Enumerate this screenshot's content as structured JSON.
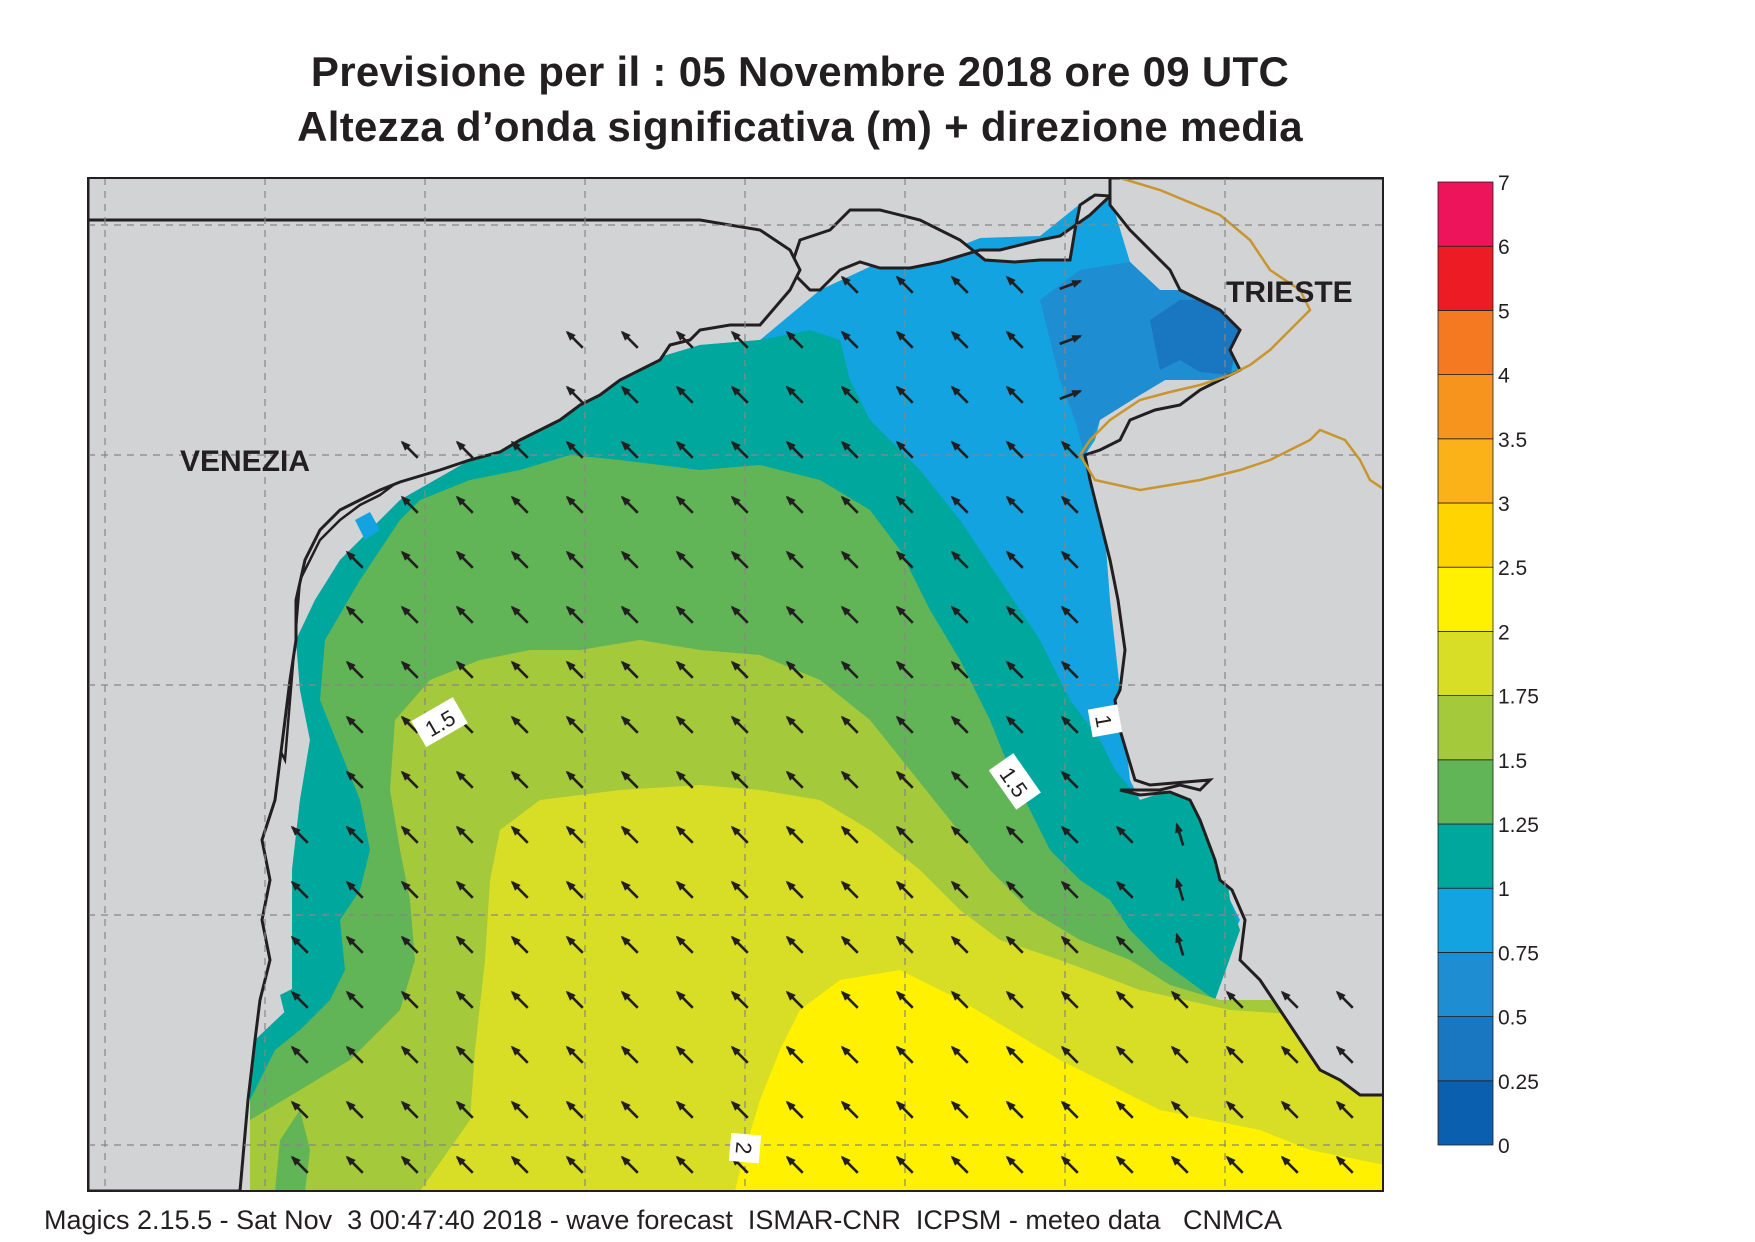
{
  "title_line1": "Previsione per il  :  05 Novembre  2018   ore 09 UTC",
  "title_line2": "Altezza d’onda significativa (m) + direzione media",
  "cities": [
    {
      "name": "VENEZIA"
    },
    {
      "name": "TRIESTE"
    }
  ],
  "contour_labels": [
    "1.5",
    "1.5",
    "1",
    "2"
  ],
  "colorbar": {
    "ticks": [
      "0",
      "0.25",
      "0.5",
      "0.75",
      "1",
      "1.25",
      "1.5",
      "1.75",
      "2",
      "2.5",
      "3",
      "3.5",
      "4",
      "5",
      "6",
      "7"
    ],
    "colors": [
      "#0a5fae",
      "#1976c0",
      "#1e8dd2",
      "#13a3e0",
      "#00a79d",
      "#62b556",
      "#a4c93b",
      "#d8de25",
      "#fff100",
      "#ffd400",
      "#fbb118",
      "#f7941d",
      "#f47920",
      "#ed1c24",
      "#ed145b"
    ]
  },
  "colors": {
    "land": "#d2d3d5",
    "coast": "#231f20",
    "border": "#c8952e",
    "grid": "#8a8585"
  },
  "footer": "Magics 2.15.5 - Sat Nov  3 00:47:40 2018 - wave forecast  ISMAR-CNR  ICPSM - meteo data   CNMCA"
}
